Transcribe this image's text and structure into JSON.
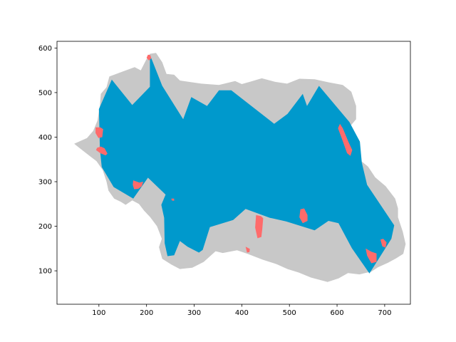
{
  "chart_data": {
    "type": "area",
    "title": "",
    "xlabel": "",
    "ylabel": "",
    "xlim": [
      12,
      754
    ],
    "ylim": [
      25,
      615
    ],
    "x_ticks": [
      100,
      200,
      300,
      400,
      500,
      600,
      700
    ],
    "y_ticks": [
      100,
      200,
      300,
      400,
      500,
      600
    ],
    "x_tick_labels": [
      "100",
      "200",
      "300",
      "400",
      "500",
      "600",
      "700"
    ],
    "y_tick_labels": [
      "100",
      "200",
      "300",
      "400",
      "500",
      "600"
    ],
    "grid": false,
    "colors": {
      "gray": "#c8c8c8",
      "blue": "#0099cc",
      "red": "#ff6b6b"
    },
    "gray_region": [
      [
        48,
        385
      ],
      [
        75,
        398
      ],
      [
        88,
        414
      ],
      [
        97,
        437
      ],
      [
        102,
        470
      ],
      [
        104,
        497
      ],
      [
        116,
        512
      ],
      [
        122,
        536
      ],
      [
        152,
        548
      ],
      [
        175,
        557
      ],
      [
        188,
        550
      ],
      [
        199,
        573
      ],
      [
        207,
        587
      ],
      [
        220,
        589
      ],
      [
        233,
        568
      ],
      [
        242,
        542
      ],
      [
        258,
        540
      ],
      [
        270,
        527
      ],
      [
        315,
        520
      ],
      [
        352,
        517
      ],
      [
        386,
        526
      ],
      [
        400,
        519
      ],
      [
        420,
        525
      ],
      [
        442,
        532
      ],
      [
        470,
        524
      ],
      [
        495,
        520
      ],
      [
        521,
        531
      ],
      [
        553,
        530
      ],
      [
        582,
        523
      ],
      [
        612,
        517
      ],
      [
        630,
        502
      ],
      [
        640,
        470
      ],
      [
        640,
        440
      ],
      [
        628,
        425
      ],
      [
        634,
        380
      ],
      [
        651,
        346
      ],
      [
        665,
        334
      ],
      [
        680,
        310
      ],
      [
        702,
        290
      ],
      [
        722,
        262
      ],
      [
        728,
        240
      ],
      [
        728,
        220
      ],
      [
        738,
        188
      ],
      [
        744,
        160
      ],
      [
        739,
        138
      ],
      [
        724,
        128
      ],
      [
        707,
        118
      ],
      [
        686,
        108
      ],
      [
        672,
        98
      ],
      [
        647,
        92
      ],
      [
        623,
        95
      ],
      [
        603,
        83
      ],
      [
        580,
        75
      ],
      [
        545,
        85
      ],
      [
        520,
        96
      ],
      [
        496,
        104
      ],
      [
        473,
        115
      ],
      [
        444,
        125
      ],
      [
        412,
        138
      ],
      [
        390,
        146
      ],
      [
        360,
        140
      ],
      [
        345,
        144
      ],
      [
        320,
        120
      ],
      [
        296,
        107
      ],
      [
        270,
        104
      ],
      [
        252,
        114
      ],
      [
        233,
        127
      ],
      [
        226,
        153
      ],
      [
        232,
        172
      ],
      [
        222,
        200
      ],
      [
        208,
        220
      ],
      [
        195,
        235
      ],
      [
        184,
        250
      ],
      [
        170,
        258
      ],
      [
        156,
        248
      ],
      [
        146,
        255
      ],
      [
        132,
        262
      ],
      [
        120,
        280
      ],
      [
        116,
        300
      ],
      [
        108,
        326
      ],
      [
        95,
        346
      ],
      [
        78,
        360
      ],
      [
        60,
        375
      ]
    ],
    "blue_region": [
      [
        100,
        463
      ],
      [
        127,
        529
      ],
      [
        170,
        472
      ],
      [
        207,
        513
      ],
      [
        207,
        585
      ],
      [
        233,
        515
      ],
      [
        277,
        440
      ],
      [
        294,
        490
      ],
      [
        327,
        470
      ],
      [
        352,
        505
      ],
      [
        378,
        505
      ],
      [
        468,
        430
      ],
      [
        496,
        452
      ],
      [
        528,
        497
      ],
      [
        537,
        470
      ],
      [
        562,
        515
      ],
      [
        626,
        434
      ],
      [
        648,
        390
      ],
      [
        652,
        343
      ],
      [
        663,
        293
      ],
      [
        720,
        202
      ],
      [
        714,
        172
      ],
      [
        668,
        94
      ],
      [
        631,
        151
      ],
      [
        603,
        207
      ],
      [
        582,
        212
      ],
      [
        553,
        191
      ],
      [
        493,
        211
      ],
      [
        459,
        219
      ],
      [
        408,
        239
      ],
      [
        382,
        214
      ],
      [
        333,
        198
      ],
      [
        318,
        147
      ],
      [
        310,
        141
      ],
      [
        286,
        154
      ],
      [
        270,
        167
      ],
      [
        258,
        135
      ],
      [
        244,
        133
      ],
      [
        238,
        162
      ],
      [
        237,
        219
      ],
      [
        231,
        248
      ],
      [
        240,
        271
      ],
      [
        203,
        309
      ],
      [
        172,
        262
      ],
      [
        131,
        288
      ],
      [
        106,
        333
      ],
      [
        102,
        373
      ]
    ],
    "red_regions": [
      [
        [
          200,
          578
        ],
        [
          205,
          572
        ],
        [
          210,
          577
        ],
        [
          208,
          584
        ],
        [
          203,
          585
        ]
      ],
      [
        [
          93,
          422
        ],
        [
          103,
          422
        ],
        [
          109,
          418
        ],
        [
          107,
          400
        ],
        [
          99,
          398
        ],
        [
          93,
          409
        ]
      ],
      [
        [
          94,
          371
        ],
        [
          103,
          364
        ],
        [
          114,
          359
        ],
        [
          118,
          363
        ],
        [
          112,
          375
        ],
        [
          104,
          379
        ],
        [
          96,
          376
        ]
      ],
      [
        [
          172,
          303
        ],
        [
          185,
          298
        ],
        [
          193,
          300
        ],
        [
          190,
          290
        ],
        [
          183,
          284
        ],
        [
          174,
          283
        ],
        [
          171,
          293
        ]
      ],
      [
        [
          252,
          262
        ],
        [
          258,
          262
        ],
        [
          258,
          257
        ],
        [
          253,
          258
        ]
      ],
      [
        [
          430,
          225
        ],
        [
          440,
          223
        ],
        [
          445,
          218
        ],
        [
          443,
          193
        ],
        [
          441,
          176
        ],
        [
          433,
          173
        ],
        [
          428,
          197
        ]
      ],
      [
        [
          408,
          154
        ],
        [
          417,
          149
        ],
        [
          416,
          142
        ],
        [
          411,
          141
        ]
      ],
      [
        [
          523,
          238
        ],
        [
          531,
          240
        ],
        [
          538,
          225
        ],
        [
          538,
          212
        ],
        [
          528,
          207
        ],
        [
          521,
          220
        ]
      ],
      [
        [
          606,
          430
        ],
        [
          612,
          420
        ],
        [
          624,
          389
        ],
        [
          632,
          371
        ],
        [
          628,
          358
        ],
        [
          621,
          364
        ],
        [
          612,
          391
        ],
        [
          602,
          420
        ]
      ],
      [
        [
          660,
          150
        ],
        [
          672,
          143
        ],
        [
          683,
          139
        ],
        [
          683,
          120
        ],
        [
          672,
          117
        ],
        [
          663,
          134
        ]
      ],
      [
        [
          691,
          170
        ],
        [
          697,
          172
        ],
        [
          704,
          164
        ],
        [
          702,
          152
        ],
        [
          695,
          155
        ]
      ]
    ]
  }
}
